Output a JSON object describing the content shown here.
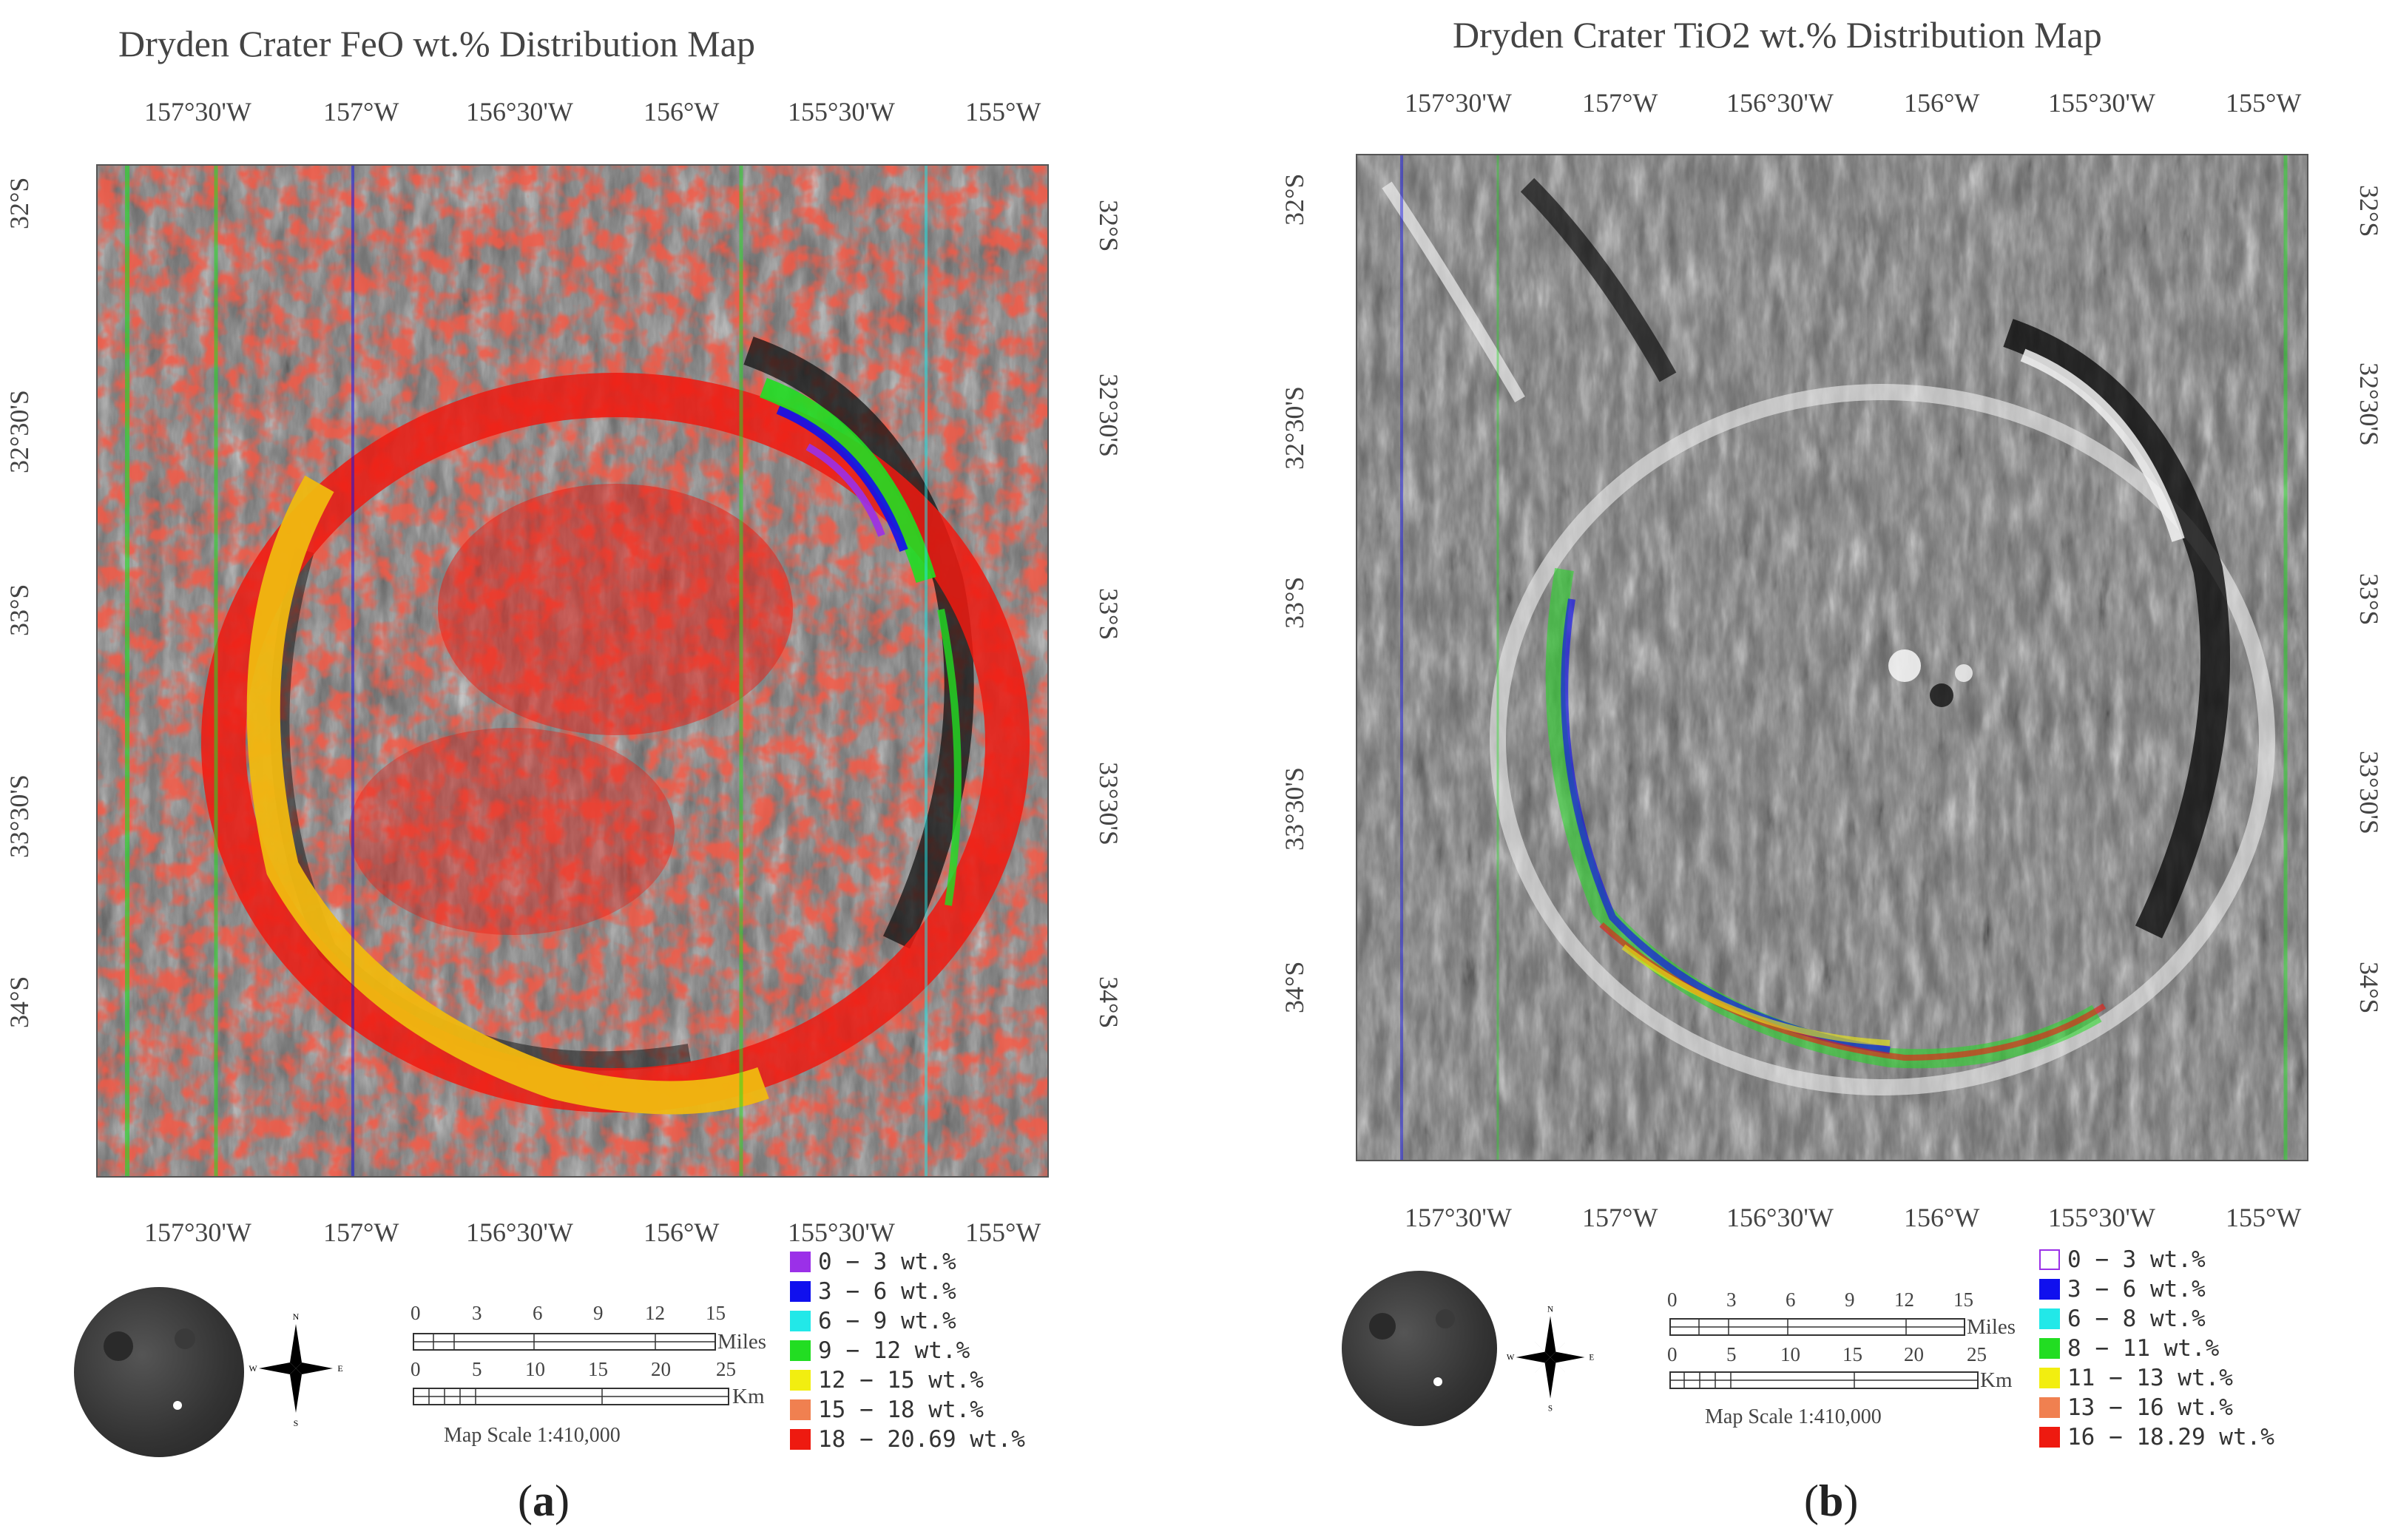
{
  "panels": [
    {
      "id": "a",
      "title": "Dryden Crater FeO wt.% Distribution Map",
      "caption_label": "a",
      "lon_ticks": [
        "157°30'W",
        "157°W",
        "156°30'W",
        "156°W",
        "155°30'W",
        "155°W"
      ],
      "lat_ticks": [
        "32°S",
        "32°30'S",
        "33°S",
        "33°30'S",
        "34°S"
      ],
      "legend": [
        {
          "label": "0 − 3 wt.%",
          "color": "#9b30e8"
        },
        {
          "label": "3 − 6 wt.%",
          "color": "#1010ee"
        },
        {
          "label": "6 − 9 wt.%",
          "color": "#22e8e8"
        },
        {
          "label": "9 − 12 wt.%",
          "color": "#22dd22"
        },
        {
          "label": "12 − 15 wt.%",
          "color": "#f2ee10"
        },
        {
          "label": "15 − 18 wt.%",
          "color": "#f08050"
        },
        {
          "label": "18 − 20.69 wt.%",
          "color": "#ee1a10"
        }
      ],
      "scale_miles": [
        "0",
        "3",
        "6",
        "9",
        "12",
        "15"
      ],
      "scale_km": [
        "0",
        "5",
        "10",
        "15",
        "20",
        "25"
      ],
      "miles_label": "Miles",
      "km_label": "Km",
      "map_scale": "Map Scale 1:410,000",
      "compass": {
        "n": "N",
        "s": "S",
        "e": "E",
        "w": "W"
      }
    },
    {
      "id": "b",
      "title": "Dryden Crater TiO2 wt.% Distribution Map",
      "caption_label": "b",
      "lon_ticks": [
        "157°30'W",
        "157°W",
        "156°30'W",
        "156°W",
        "155°30'W",
        "155°W"
      ],
      "lat_ticks": [
        "32°S",
        "32°30'S",
        "33°S",
        "33°30'S",
        "34°S"
      ],
      "legend": [
        {
          "label": "0 − 3 wt.%",
          "color": "#ffffff",
          "outline": "#9b30e8"
        },
        {
          "label": "3 − 6 wt.%",
          "color": "#1010ee"
        },
        {
          "label": "6 − 8 wt.%",
          "color": "#22e8e8"
        },
        {
          "label": "8 − 11 wt.%",
          "color": "#22dd22"
        },
        {
          "label": "11 − 13 wt.%",
          "color": "#f2ee10"
        },
        {
          "label": "13 − 16 wt.%",
          "color": "#f08050"
        },
        {
          "label": "16 − 18.29 wt.%",
          "color": "#ee1a10"
        }
      ],
      "scale_miles": [
        "0",
        "3",
        "6",
        "9",
        "12",
        "15"
      ],
      "scale_km": [
        "0",
        "5",
        "10",
        "15",
        "20",
        "25"
      ],
      "miles_label": "Miles",
      "km_label": "Km",
      "map_scale": "Map Scale 1:410,000",
      "compass": {
        "n": "N",
        "s": "S",
        "e": "E",
        "w": "W"
      }
    }
  ]
}
